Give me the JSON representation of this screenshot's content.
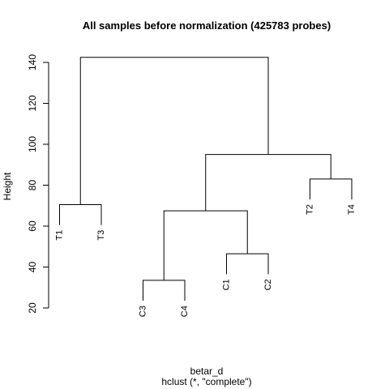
{
  "chart_data": {
    "type": "dendrogram",
    "title": "All samples before normalization (425783 probes)",
    "xlabel": "betar_d",
    "sublabel": "hclust (*, \"complete\")",
    "ylabel": "Height",
    "ylim": [
      20,
      145
    ],
    "yticks": [
      20,
      40,
      60,
      80,
      100,
      120,
      140
    ],
    "leaves": [
      "T1",
      "T3",
      "C3",
      "C4",
      "C1",
      "C2",
      "T2",
      "T4"
    ],
    "merges": [
      {
        "left": "C3",
        "right": "C4",
        "height": 33.5
      },
      {
        "left": "C1",
        "right": "C2",
        "height": 46.5
      },
      {
        "left": "T1",
        "right": "T3",
        "height": 70.5
      },
      {
        "left": "T2",
        "right": "T4",
        "height": 83
      },
      {
        "left": "C3+C4",
        "right": "C1+C2",
        "height": 67.5
      },
      {
        "left": "C3+C4+C1+C2",
        "right": "T2+T4",
        "height": 95
      },
      {
        "left": "T1+T3",
        "right": "C3+C4+C1+C2+T2+T4",
        "height": 142.5
      }
    ],
    "hang_depth": 10
  }
}
